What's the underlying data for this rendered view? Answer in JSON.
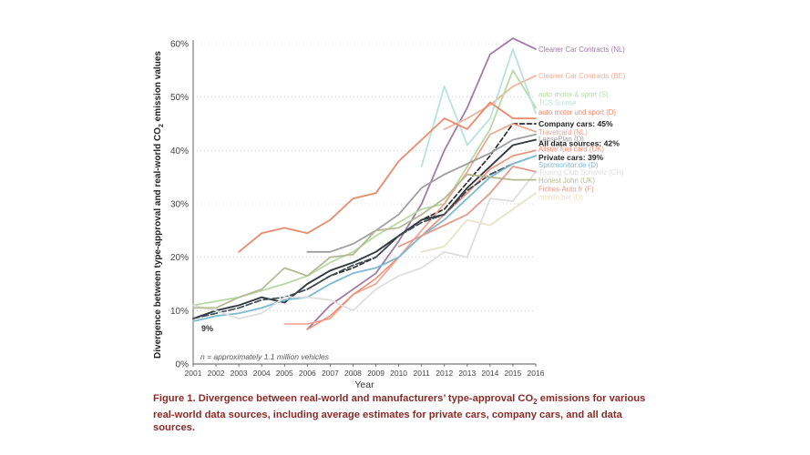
{
  "chart_data": {
    "type": "line",
    "title": "",
    "xlabel": "Year",
    "ylabel_prefix": "Divergence between type-approval and real-world CO",
    "ylabel_sub": "2",
    "ylabel_suffix": " emission values",
    "xlim": [
      2001,
      2016
    ],
    "ylim": [
      0,
      60
    ],
    "x_ticks": [
      2001,
      2002,
      2003,
      2004,
      2005,
      2006,
      2007,
      2008,
      2009,
      2010,
      2011,
      2012,
      2013,
      2014,
      2015,
      2016
    ],
    "y_ticks": [
      0,
      10,
      20,
      30,
      40,
      50,
      60
    ],
    "y_tick_labels": [
      "0%",
      "10%",
      "20%",
      "30%",
      "40%",
      "50%",
      "60%"
    ],
    "grid": "horizontal dotted",
    "annotation_start": "9%",
    "note": "n = approximately 1.1 million vehicles",
    "series": [
      {
        "name": "Cleaner Car Contracts (NL)",
        "color": "#a07ba6",
        "width": 1.8,
        "dash": "",
        "x": [
          2006,
          2007,
          2008,
          2009,
          2010,
          2011,
          2012,
          2013,
          2014,
          2015,
          2016
        ],
        "values": [
          6.5,
          11,
          14,
          17,
          23,
          30,
          40,
          48,
          58,
          61,
          59
        ],
        "label_y": 59,
        "emphasis": false
      },
      {
        "name": "Cleaner Car Contracts (BE)",
        "color": "#f2b19a",
        "width": 1.8,
        "dash": "",
        "x": [
          2012,
          2013,
          2014,
          2015,
          2016
        ],
        "values": [
          44,
          46,
          48.5,
          52,
          54
        ],
        "label_y": 54,
        "emphasis": false
      },
      {
        "name": "auto motor & sport (S)",
        "color": "#b8d9a4",
        "width": 1.8,
        "dash": "",
        "x": [
          2001,
          2003,
          2005,
          2006,
          2007,
          2008,
          2009,
          2010,
          2011,
          2012,
          2013,
          2014,
          2015,
          2016
        ],
        "values": [
          11,
          12.5,
          15,
          16.5,
          19,
          21,
          24,
          26.5,
          29,
          30,
          37,
          44,
          55,
          48
        ],
        "label_y": 50.5,
        "emphasis": false
      },
      {
        "name": "TCS Suisse",
        "color": "#b9e3da",
        "width": 1.8,
        "dash": "",
        "x": [
          2011,
          2012,
          2013,
          2014,
          2015,
          2016
        ],
        "values": [
          37,
          52,
          41,
          46,
          59,
          47
        ],
        "label_y": 49,
        "emphasis": false
      },
      {
        "name": "auto motor und sport (D)",
        "color": "#ea8a6c",
        "width": 1.8,
        "dash": "",
        "x": [
          2003,
          2004,
          2005,
          2006,
          2007,
          2008,
          2009,
          2010,
          2011,
          2012,
          2013,
          2014,
          2015,
          2016
        ],
        "values": [
          21,
          24.5,
          25.5,
          24.5,
          27,
          31,
          32,
          38,
          42,
          46,
          44,
          49,
          46,
          46
        ],
        "label_y": 47.2,
        "emphasis": false
      },
      {
        "name": "Company cars: 45%",
        "color": "#2c2c2c",
        "width": 1.7,
        "dash": "5,3",
        "x": [
          2006,
          2007,
          2008,
          2009,
          2010,
          2011,
          2012,
          2013,
          2014,
          2015,
          2016
        ],
        "values": [
          14,
          16.5,
          18,
          20,
          24,
          27,
          29,
          34,
          39,
          45,
          45
        ],
        "label_y": 45,
        "emphasis": true
      },
      {
        "name": "Travelcard (NL)",
        "color": "#f2a08b",
        "width": 1.6,
        "dash": "",
        "x": [
          2005,
          2006,
          2007,
          2008,
          2009,
          2010,
          2011,
          2012,
          2013,
          2014,
          2015,
          2016
        ],
        "values": [
          7.5,
          7.5,
          8.5,
          13,
          15,
          20,
          25,
          30,
          36,
          43,
          45,
          43.5
        ],
        "label_y": 43.5,
        "emphasis": false
      },
      {
        "name": "LeasePlan (D)",
        "color": "#9e9e9e",
        "width": 1.8,
        "dash": "",
        "x": [
          2006,
          2007,
          2008,
          2009,
          2010,
          2011,
          2012,
          2013,
          2014,
          2015,
          2016
        ],
        "values": [
          21,
          21,
          22.5,
          25,
          28,
          33,
          35.5,
          37.5,
          39.5,
          42,
          43
        ],
        "label_y": 42.2,
        "emphasis": false
      },
      {
        "name": "All data sources: 42%",
        "color": "#333a42",
        "width": 1.9,
        "dash": "",
        "x": [
          2001,
          2002,
          2003,
          2004,
          2005,
          2006,
          2007,
          2008,
          2009,
          2010,
          2011,
          2012,
          2013,
          2014,
          2015,
          2016
        ],
        "values": [
          8.5,
          10,
          11,
          12.5,
          11.5,
          15,
          17.5,
          19,
          21,
          24,
          27,
          28,
          33,
          37,
          41,
          42
        ],
        "label_y": 41.3,
        "emphasis": true
      },
      {
        "name": "Allstar fuel card (UK)",
        "color": "#ee8e75",
        "width": 1.6,
        "dash": "",
        "x": [
          2006,
          2007,
          2008,
          2009,
          2010,
          2011,
          2012,
          2013,
          2014,
          2015,
          2016
        ],
        "values": [
          6.5,
          9,
          13,
          16,
          20,
          24,
          28,
          32,
          36.5,
          39,
          40
        ],
        "label_y": 40.3,
        "emphasis": false
      },
      {
        "name": "Private cars: 39%",
        "color": "#3f4b55",
        "width": 1.7,
        "dash": "7,3",
        "x": [
          2001,
          2002,
          2003,
          2004,
          2005,
          2006,
          2007,
          2008,
          2009,
          2010,
          2011,
          2012,
          2013,
          2014,
          2015,
          2016
        ],
        "values": [
          8.5,
          9.5,
          10.5,
          12,
          12.5,
          14,
          16.5,
          18.5,
          20,
          24,
          26.5,
          28,
          32.5,
          35.5,
          37.5,
          39
        ],
        "label_y": 38.7,
        "emphasis": true
      },
      {
        "name": "Spritmonitor.de (D)",
        "color": "#7cb9d2",
        "width": 1.8,
        "dash": "",
        "x": [
          2001,
          2002,
          2003,
          2004,
          2005,
          2006,
          2007,
          2008,
          2009,
          2010,
          2011,
          2012,
          2013,
          2014,
          2015,
          2016
        ],
        "values": [
          8,
          9,
          9.5,
          10.5,
          12,
          12.5,
          15,
          17,
          18,
          20,
          24,
          27,
          31,
          35,
          37.5,
          39
        ],
        "label_y": 37.3,
        "emphasis": false
      },
      {
        "name": "Touring Club Schweiz (CH)",
        "color": "#dedede",
        "width": 1.8,
        "dash": "",
        "x": [
          2001,
          2002,
          2003,
          2004,
          2005,
          2006,
          2007,
          2008,
          2009,
          2010,
          2011,
          2012,
          2013,
          2014,
          2015,
          2016
        ],
        "values": [
          11,
          10,
          8.5,
          9.5,
          12.5,
          12.5,
          12,
          10,
          14,
          16.5,
          18,
          21,
          20,
          31,
          30.5,
          36
        ],
        "label_y": 36,
        "emphasis": false
      },
      {
        "name": "Honest John (UK)",
        "color": "#b5ba94",
        "width": 1.8,
        "dash": "",
        "x": [
          2001,
          2002,
          2003,
          2004,
          2005,
          2006,
          2007,
          2008,
          2009,
          2010,
          2011,
          2012,
          2013,
          2014,
          2015,
          2016
        ],
        "values": [
          10.5,
          10.5,
          12.5,
          14,
          18,
          16.5,
          20,
          20.5,
          25,
          25.5,
          28,
          31,
          35.5,
          35,
          34.5,
          34.5
        ],
        "label_y": 34.4,
        "emphasis": false
      },
      {
        "name": "Fiches-Auto.fr (F)",
        "color": "#e59a8d",
        "width": 1.8,
        "dash": "",
        "x": [
          2010,
          2011,
          2012,
          2013,
          2014,
          2015,
          2016
        ],
        "values": [
          22,
          24,
          26,
          28,
          32,
          37,
          36
        ],
        "label_y": 32.8,
        "emphasis": false
      },
      {
        "name": "mobile.bet (D)",
        "color": "#e9e2c6",
        "width": 1.8,
        "dash": "",
        "x": [
          2011,
          2012,
          2013,
          2014,
          2015,
          2016
        ],
        "values": [
          21,
          22,
          27,
          26,
          29,
          32
        ],
        "label_y": 31.3,
        "emphasis": false
      }
    ]
  },
  "caption": {
    "prefix": "Figure 1. Divergence between real-world and manufacturers’ type-approval CO",
    "sub": "2",
    "suffix": " emissions for various real-world data sources, including average estimates for private cars, company cars, and all data sources."
  }
}
